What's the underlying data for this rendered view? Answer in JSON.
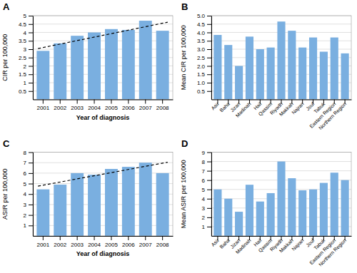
{
  "chart_data": [
    {
      "type": "bar",
      "title": "A",
      "categories": [
        "2001",
        "2002",
        "2003",
        "2004",
        "2005",
        "2006",
        "2007",
        "2008"
      ],
      "values": [
        2.9,
        3.35,
        3.8,
        4.0,
        4.2,
        4.15,
        4.7,
        4.1
      ],
      "color": "#7aafe0",
      "trend": {
        "start": 3.1,
        "end": 4.55,
        "color": "#000000",
        "line_style": "dashed"
      },
      "xlabel": "Year of diagnosis",
      "ylabel": "CIR per 100,000",
      "ylim": [
        0,
        5
      ],
      "yticks": [
        0.5,
        1,
        1.5,
        2,
        2.5,
        3,
        3.5,
        4,
        4.5,
        5
      ],
      "grid": true
    },
    {
      "type": "bar",
      "title": "B",
      "categories": [
        "Asir",
        "Baha",
        "Jizan",
        "Madinah",
        "Hail",
        "Qassim",
        "Riyadh",
        "Makkah",
        "Najran",
        "Jouf",
        "Tabuk",
        "Eastern Region",
        "Northern Region"
      ],
      "values": [
        3.85,
        3.25,
        2.0,
        3.75,
        3.0,
        3.1,
        4.65,
        4.1,
        3.1,
        3.7,
        2.85,
        3.7,
        2.75
      ],
      "color": "#7aafe0",
      "ylabel": "Mean CIR per 100,000",
      "ylim": [
        0,
        5
      ],
      "yticks": [
        0.5,
        {
          "value": 1,
          "label": "1.0"
        },
        1.5,
        {
          "value": 2,
          "label": "2.0"
        },
        2.5,
        {
          "value": 3,
          "label": "3.0"
        },
        3.5,
        {
          "value": 4,
          "label": "4.0"
        },
        4.5,
        {
          "value": 5,
          "label": "5.0"
        }
      ],
      "grid": true
    },
    {
      "type": "bar",
      "title": "C",
      "categories": [
        "2001",
        "2002",
        "2003",
        "2004",
        "2005",
        "2006",
        "2007",
        "2008"
      ],
      "values": [
        4.45,
        4.9,
        6.0,
        5.85,
        6.4,
        6.6,
        7.0,
        6.0
      ],
      "color": "#7aafe0",
      "trend": {
        "start": 4.85,
        "end": 6.95,
        "color": "#000000",
        "line_style": "dashed"
      },
      "xlabel": "Year of diagnosis",
      "ylabel": "ASIR per 100,000",
      "ylim": [
        0,
        8
      ],
      "yticks": [
        1,
        2,
        3,
        4,
        5,
        6,
        7,
        8
      ],
      "grid": true
    },
    {
      "type": "bar",
      "title": "D",
      "categories": [
        "Asir",
        "Baha",
        "Jizan",
        "Madinah",
        "Hail",
        "Qassim",
        "Riyadh",
        "Makkah",
        "Najran",
        "Jouf",
        "Tabuk",
        "Eastern Region",
        "Northern Region"
      ],
      "values": [
        5.0,
        4.0,
        2.6,
        5.5,
        3.7,
        4.6,
        8.0,
        6.2,
        4.9,
        5.0,
        5.7,
        6.8,
        6.0
      ],
      "color": "#7aafe0",
      "ylabel": "Mean ASIR per 100,000",
      "ylim": [
        0,
        9
      ],
      "yticks": [
        1,
        2,
        3,
        4,
        5,
        6,
        7,
        8,
        9
      ],
      "grid": true
    }
  ]
}
